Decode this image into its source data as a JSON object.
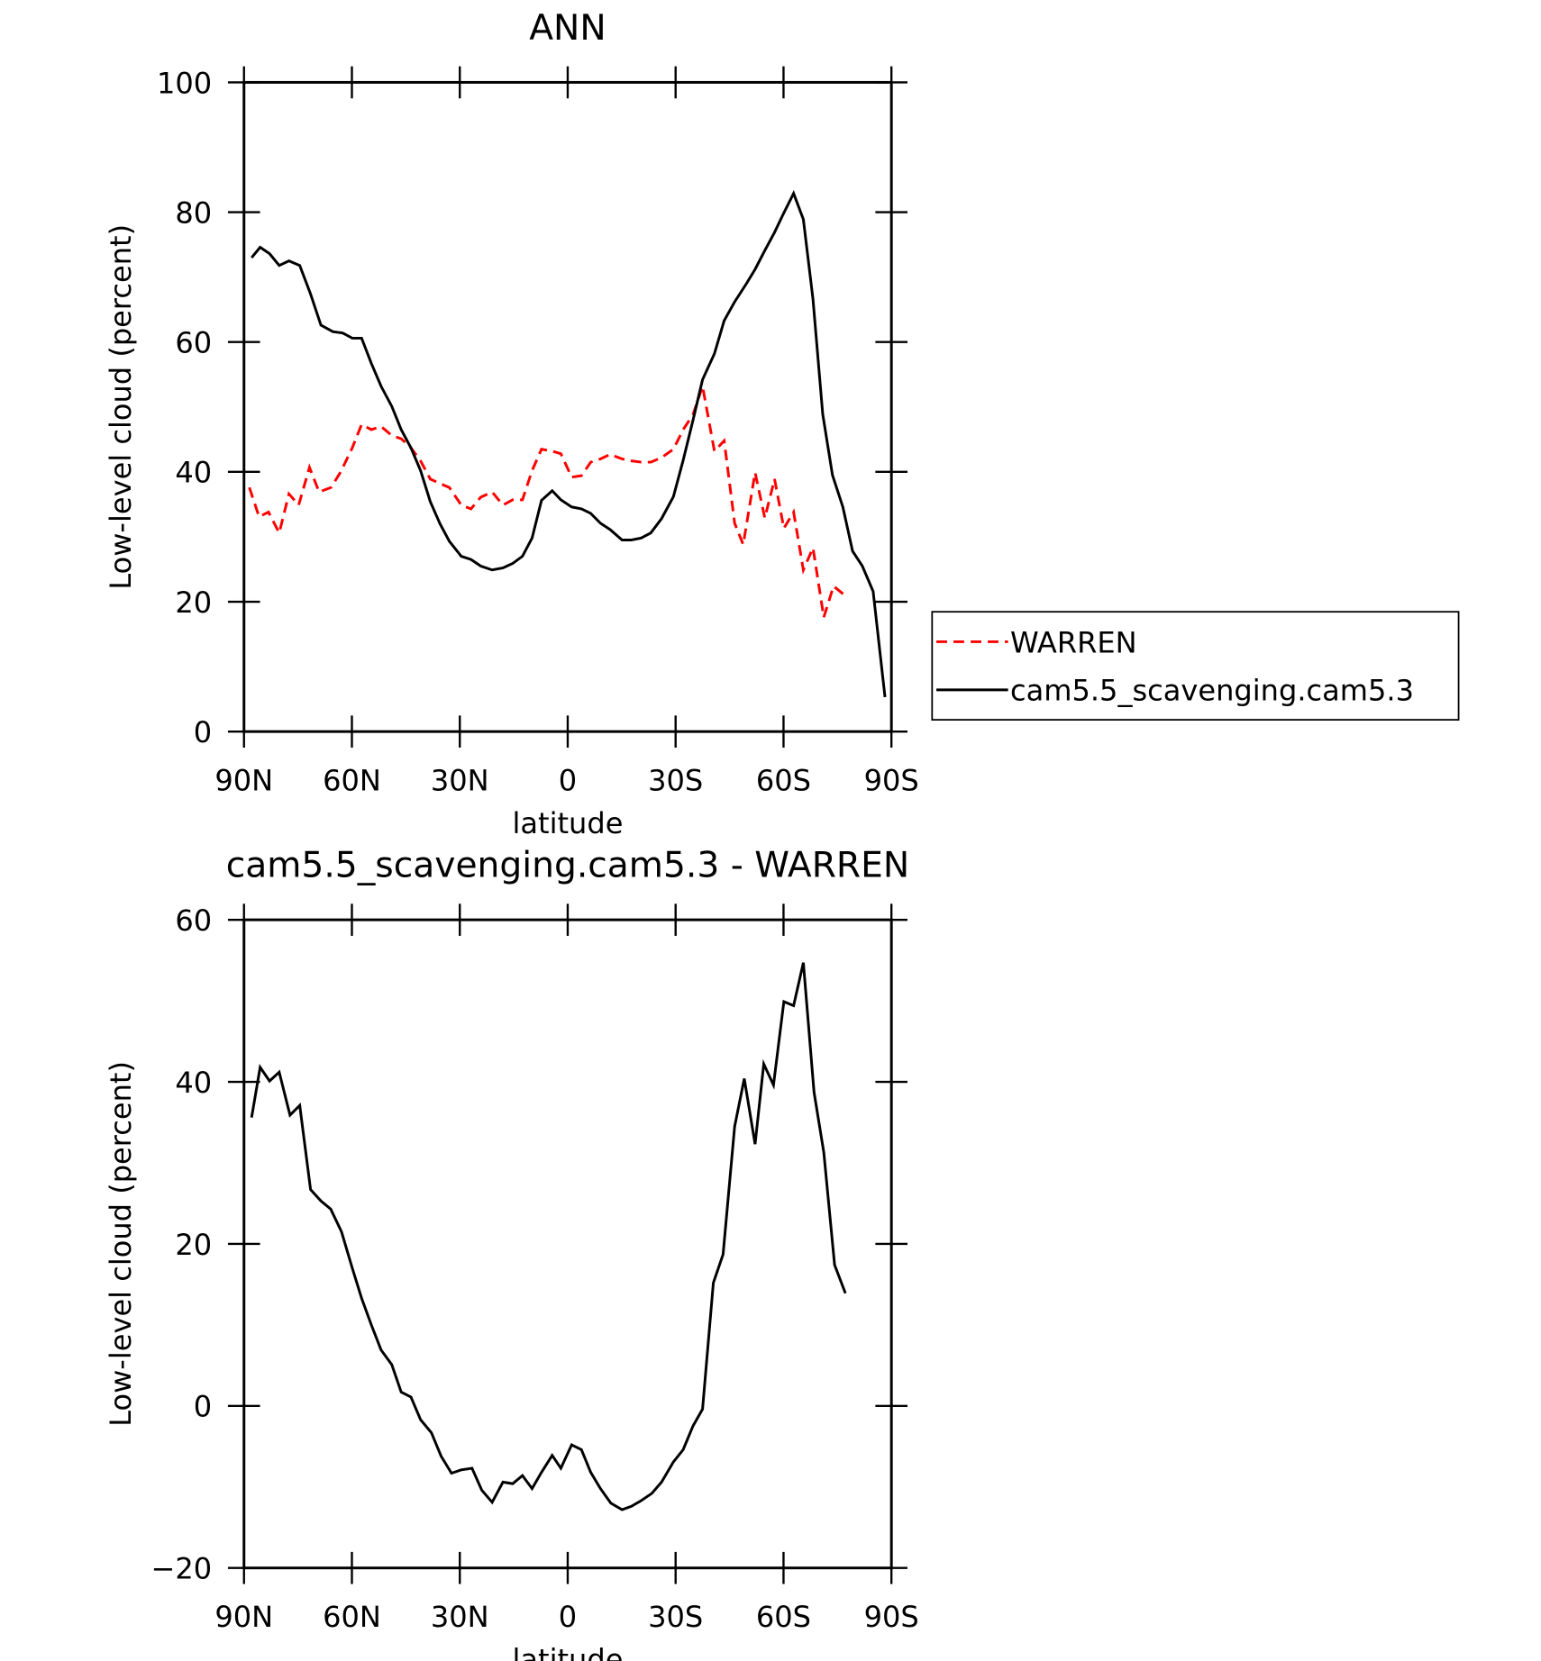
{
  "chart_data": [
    {
      "type": "line",
      "title": "ANN",
      "x_label": "latitude",
      "y_label": "Low-level cloud (percent)",
      "xlim": [
        90,
        -90
      ],
      "xticks": [
        {
          "value": 90,
          "label": "90N"
        },
        {
          "value": 60,
          "label": "60N"
        },
        {
          "value": 30,
          "label": "30N"
        },
        0,
        {
          "value": -30,
          "label": "30S"
        },
        {
          "value": -60,
          "label": "60S"
        },
        {
          "value": -90,
          "label": "90S"
        }
      ],
      "ylim": [
        0,
        100
      ],
      "yticks": [
        0,
        20,
        40,
        60,
        80,
        100
      ],
      "legend": "outside-right",
      "series": [
        {
          "name": "WARREN",
          "color": "#ff0000",
          "dash": "dashed",
          "x": [
            88.5,
            85.8,
            83.2,
            80.2,
            77.5,
            74.8,
            71.8,
            69.1,
            65.8,
            63.1,
            59.9,
            57.3,
            54.6,
            51.9,
            48.9,
            46.3,
            43.6,
            40.9,
            38.2,
            35.5,
            32.9,
            29.6,
            26.9,
            24.2,
            21,
            18,
            15.3,
            12.6,
            9.9,
            7.3,
            4.3,
            1.9,
            -1.1,
            -3.8,
            -6.4,
            -9.1,
            -11.8,
            -15.1,
            -17.7,
            -20.4,
            -23.1,
            -26.1,
            -29.4,
            -32.1,
            -34.8,
            -37.5,
            -40.8,
            -43.5,
            -46.4,
            -48.8,
            -52.1,
            -54.8,
            -57.5,
            -60.1,
            -62.8,
            -65.5,
            -68.2,
            -71.2,
            -73.9,
            -77.2
          ],
          "values": [
            37.6,
            33.1,
            33.8,
            30.6,
            36.6,
            34.9,
            40.7,
            36.9,
            37.6,
            40,
            43.7,
            47.3,
            46.5,
            47,
            45.6,
            45.1,
            43.7,
            41.7,
            38.9,
            38.2,
            37.6,
            34.9,
            34.3,
            36.1,
            36.9,
            34.9,
            35.7,
            35.7,
            40.2,
            43.5,
            43.2,
            42.8,
            39.2,
            39.4,
            41.5,
            42,
            42.7,
            42,
            41.7,
            41.5,
            41.5,
            42.2,
            43.5,
            46.5,
            48.8,
            53.2,
            43.2,
            44.8,
            32.1,
            28.8,
            39.9,
            32.9,
            38.9,
            31.3,
            33.8,
            24.9,
            28.3,
            17.6,
            22.4,
            20.9
          ]
        },
        {
          "name": "cam5.5_scavenging.cam5.3",
          "color": "#000000",
          "dash": "solid",
          "x": [
            87.9,
            85.5,
            82.9,
            80.2,
            77.5,
            74.5,
            71.5,
            68.6,
            65.3,
            62.6,
            59.9,
            57.3,
            54.6,
            51.9,
            48.9,
            46.3,
            43.6,
            40.9,
            38.2,
            35.5,
            32.9,
            29.6,
            26.9,
            24.2,
            21,
            18,
            15.3,
            12.6,
            9.9,
            7.3,
            4.3,
            1.9,
            -1.1,
            -3.8,
            -6.4,
            -9.1,
            -11.8,
            -15.1,
            -17.7,
            -20.4,
            -23.1,
            -26.1,
            -29.4,
            -32.1,
            -34.8,
            -37.5,
            -40.8,
            -43.5,
            -46.4,
            -49.7,
            -52.1,
            -54.8,
            -57.5,
            -60.1,
            -62.8,
            -65.5,
            -68.2,
            -70.9,
            -73.6,
            -76.5,
            -79.2,
            -81.9,
            -84.9,
            -88.2
          ],
          "values": [
            73,
            74.6,
            73.6,
            71.8,
            72.5,
            71.8,
            67.4,
            62.6,
            61.6,
            61.4,
            60.6,
            60.6,
            56.7,
            53.2,
            50.1,
            46.5,
            43.7,
            40.2,
            35.4,
            32,
            29.3,
            27,
            26.5,
            25.5,
            24.9,
            25.2,
            25.9,
            27,
            29.8,
            35.6,
            37.1,
            35.7,
            34.6,
            34.3,
            33.6,
            32.1,
            31.1,
            29.5,
            29.5,
            29.8,
            30.6,
            32.8,
            36.2,
            41.8,
            47.9,
            54.2,
            58.2,
            63.3,
            66.2,
            69,
            71.2,
            74.1,
            76.9,
            79.9,
            82.9,
            78.9,
            66.6,
            48.9,
            39.5,
            34.6,
            27.8,
            25.5,
            21.6,
            5.3
          ]
        }
      ]
    },
    {
      "type": "line",
      "title": "cam5.5_scavenging.cam5.3 - WARREN",
      "x_label": "latitude",
      "y_label": "Low-level cloud (percent)",
      "xlim": [
        90,
        -90
      ],
      "xticks": [
        {
          "value": 90,
          "label": "90N"
        },
        {
          "value": 60,
          "label": "60N"
        },
        {
          "value": 30,
          "label": "30N"
        },
        0,
        {
          "value": -30,
          "label": "30S"
        },
        {
          "value": -60,
          "label": "60S"
        },
        {
          "value": -90,
          "label": "90S"
        }
      ],
      "ylim": [
        -20,
        60
      ],
      "yticks": [
        {
          "value": -20,
          "label": "−20"
        },
        0,
        20,
        40,
        60
      ],
      "series": [
        {
          "color": "#000000",
          "dash": "solid",
          "x": [
            87.9,
            85.5,
            82.9,
            80.2,
            77.2,
            74.5,
            71.5,
            68.6,
            65.9,
            62.9,
            59.9,
            57.3,
            54.6,
            51.9,
            48.9,
            46.3,
            43.6,
            40.9,
            37.9,
            35.2,
            32.3,
            29.6,
            26.6,
            23.9,
            21,
            18,
            15.3,
            12.6,
            9.9,
            7.3,
            4.3,
            1.9,
            -1.1,
            -3.8,
            -6.4,
            -9.1,
            -12,
            -15.1,
            -17.7,
            -20.4,
            -23.4,
            -26.1,
            -29.4,
            -32.1,
            -34.8,
            -37.5,
            -40.5,
            -43.2,
            -46.4,
            -49.1,
            -52.1,
            -54.5,
            -57.2,
            -60.1,
            -62.8,
            -65.5,
            -68.5,
            -71.2,
            -74.2,
            -77.2
          ],
          "values": [
            35.6,
            41.8,
            40.1,
            41.2,
            35.9,
            37.1,
            26.7,
            25.3,
            24.3,
            21.5,
            17,
            13.3,
            10,
            6.9,
            5.1,
            1.7,
            1.1,
            -1.7,
            -3.3,
            -6.2,
            -8.3,
            -7.9,
            -7.7,
            -10.4,
            -11.9,
            -9.4,
            -9.6,
            -8.6,
            -10.2,
            -8.2,
            -6.1,
            -7.7,
            -4.8,
            -5.4,
            -8.2,
            -10.2,
            -12,
            -12.8,
            -12.4,
            -11.7,
            -10.8,
            -9.4,
            -6.9,
            -5.4,
            -2.5,
            -0.4,
            15.2,
            18.7,
            34.5,
            40.4,
            32.3,
            42.2,
            39.6,
            49.9,
            49.4,
            54.7,
            38.7,
            31.3,
            17.4,
            13.9
          ]
        }
      ]
    }
  ]
}
